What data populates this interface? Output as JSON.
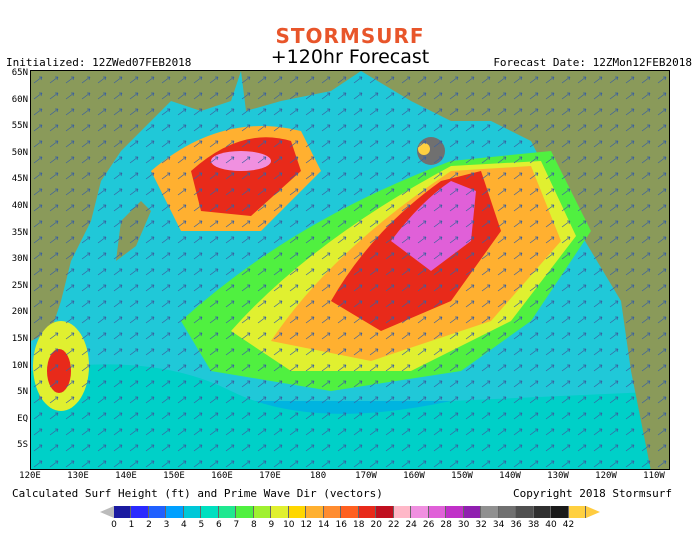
{
  "logo_text": "Stormsurf",
  "title": "+120hr Forecast",
  "initialized": "Initialized: 12ZWed07FEB2018",
  "forecast_date": "Forecast Date: 12ZMon12FEB2018",
  "latitude_labels": [
    "65N",
    "60N",
    "55N",
    "50N",
    "45N",
    "40N",
    "35N",
    "30N",
    "25N",
    "20N",
    "15N",
    "10N",
    "5N",
    "EQ",
    "5S"
  ],
  "longitude_labels": [
    "120E",
    "130E",
    "140E",
    "150E",
    "160E",
    "170E",
    "180",
    "170W",
    "160W",
    "150W",
    "140W",
    "130W",
    "120W",
    "110W"
  ],
  "footer_left": "Calculated Surf Height (ft) and Prime Wave Dir (vectors)",
  "footer_right": "Copyright 2018 Stormsurf",
  "scale_labels": [
    "0",
    "1",
    "2",
    "3",
    "4",
    "5",
    "6",
    "7",
    "8",
    "9",
    "10",
    "12",
    "14",
    "16",
    "18",
    "20",
    "22",
    "24",
    "26",
    "28",
    "30",
    "32",
    "34",
    "36",
    "38",
    "40",
    "42"
  ],
  "scale_colors": [
    "#1a1aa0",
    "#2a2aff",
    "#2060ff",
    "#00a0ff",
    "#00c8d8",
    "#00e0c0",
    "#20e890",
    "#50f040",
    "#a0f030",
    "#e0f030",
    "#ffd700",
    "#ffb030",
    "#ff8c30",
    "#ff6020",
    "#e82a1a",
    "#c01020",
    "#ffb8c8",
    "#f090e0",
    "#e060d8",
    "#c030c8",
    "#9020b0",
    "#909090",
    "#707070",
    "#505050",
    "#303030",
    "#1a1a1a",
    "#ffd040"
  ],
  "scale_under_color": "#bbbbbb",
  "scale_over_color": "#ffcc40"
}
